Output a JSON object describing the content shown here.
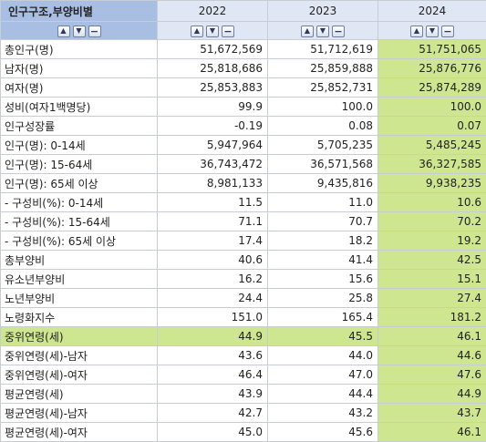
{
  "header": {
    "stub_label": "인구구조,부양비별",
    "years": [
      "2022",
      "2023",
      "2024"
    ],
    "controls": {
      "up": "▲",
      "down": "▼",
      "remove": "−"
    }
  },
  "rows": [
    {
      "label": "총인구(명)",
      "values": [
        "51,672,569",
        "51,712,619",
        "51,751,065"
      ]
    },
    {
      "label": "남자(명)",
      "values": [
        "25,818,686",
        "25,859,888",
        "25,876,776"
      ]
    },
    {
      "label": "여자(명)",
      "values": [
        "25,853,883",
        "25,852,731",
        "25,874,289"
      ]
    },
    {
      "label": "성비(여자1백명당)",
      "values": [
        "99.9",
        "100.0",
        "100.0"
      ]
    },
    {
      "label": "인구성장률",
      "values": [
        "-0.19",
        "0.08",
        "0.07"
      ]
    },
    {
      "label": "인구(명): 0-14세",
      "values": [
        "5,947,964",
        "5,705,235",
        "5,485,245"
      ]
    },
    {
      "label": "인구(명): 15-64세",
      "values": [
        "36,743,472",
        "36,571,568",
        "36,327,585"
      ]
    },
    {
      "label": "인구(명): 65세 이상",
      "values": [
        "8,981,133",
        "9,435,816",
        "9,938,235"
      ]
    },
    {
      "label": " - 구성비(%): 0-14세",
      "values": [
        "11.5",
        "11.0",
        "10.6"
      ]
    },
    {
      "label": " - 구성비(%): 15-64세",
      "values": [
        "71.1",
        "70.7",
        "70.2"
      ]
    },
    {
      "label": " - 구성비(%): 65세 이상",
      "values": [
        "17.4",
        "18.2",
        "19.2"
      ]
    },
    {
      "label": "총부양비",
      "values": [
        "40.6",
        "41.4",
        "42.5"
      ]
    },
    {
      "label": "유소년부양비",
      "values": [
        "16.2",
        "15.6",
        "15.1"
      ]
    },
    {
      "label": "노년부양비",
      "values": [
        "24.4",
        "25.8",
        "27.4"
      ]
    },
    {
      "label": "노령화지수",
      "values": [
        "151.0",
        "165.4",
        "181.2"
      ]
    },
    {
      "label": "중위연령(세)",
      "values": [
        "44.9",
        "45.5",
        "46.1"
      ]
    },
    {
      "label": "중위연령(세)-남자",
      "values": [
        "43.6",
        "44.0",
        "44.6"
      ]
    },
    {
      "label": "중위연령(세)-여자",
      "values": [
        "46.4",
        "47.0",
        "47.6"
      ]
    },
    {
      "label": "평균연령(세)",
      "values": [
        "43.9",
        "44.4",
        "44.9"
      ]
    },
    {
      "label": "평균연령(세)-남자",
      "values": [
        "42.7",
        "43.2",
        "43.7"
      ]
    },
    {
      "label": "평균연령(세)-여자",
      "values": [
        "45.0",
        "45.6",
        "46.1"
      ]
    }
  ],
  "colors": {
    "highlight": "#cfe690",
    "header": "#dfe6f4",
    "stub_header": "#a8bee3"
  }
}
